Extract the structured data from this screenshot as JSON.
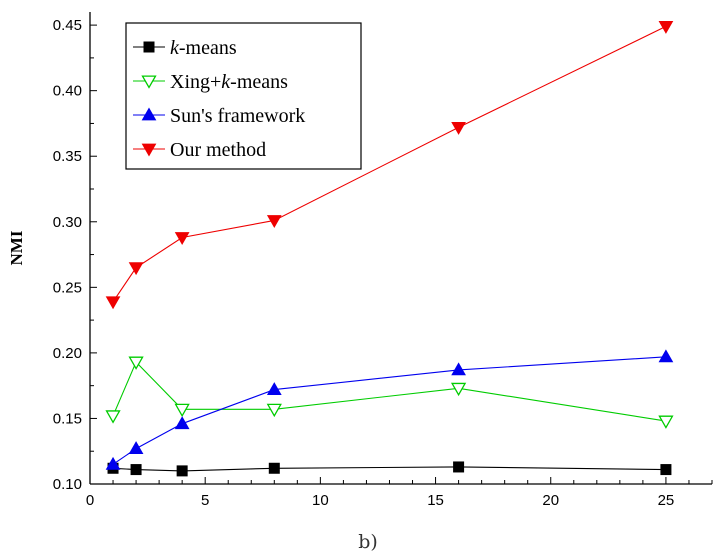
{
  "chart_data": {
    "type": "line",
    "title": "",
    "caption": "b)",
    "xlabel": "",
    "ylabel": "NMI",
    "xlim": [
      0,
      27
    ],
    "ylim": [
      0.1,
      0.46
    ],
    "xticks": [
      0,
      5,
      10,
      15,
      20,
      25
    ],
    "xtick_labels": [
      "0",
      "5",
      "10",
      "15",
      "20",
      "25"
    ],
    "yticks": [
      0.1,
      0.15,
      0.2,
      0.25,
      0.3,
      0.35,
      0.4,
      0.45
    ],
    "ytick_labels": [
      "0.10",
      "0.15",
      "0.20",
      "0.25",
      "0.30",
      "0.35",
      "0.40",
      "0.45"
    ],
    "x": [
      1,
      2,
      4,
      8,
      16,
      25
    ],
    "legend_position": "top-left",
    "grid": false,
    "series": [
      {
        "name_parts": [
          {
            "text": "k",
            "italic": true
          },
          {
            "text": "-means",
            "italic": false
          }
        ],
        "name": "k-means",
        "color": "#000000",
        "marker": "square",
        "filled": true,
        "values": [
          0.112,
          0.111,
          0.11,
          0.112,
          0.113,
          0.111
        ]
      },
      {
        "name_parts": [
          {
            "text": "Xing+",
            "italic": false
          },
          {
            "text": "k",
            "italic": true
          },
          {
            "text": "-means",
            "italic": false
          }
        ],
        "name": "Xing+k-means",
        "color": "#00cc00",
        "marker": "triangle-down",
        "filled": false,
        "values": [
          0.152,
          0.193,
          0.157,
          0.157,
          0.173,
          0.148
        ]
      },
      {
        "name_parts": [
          {
            "text": "Sun's framework",
            "italic": false
          }
        ],
        "name": "Sun's framework",
        "color": "#0000ee",
        "marker": "triangle-up",
        "filled": true,
        "values": [
          0.115,
          0.127,
          0.146,
          0.172,
          0.187,
          0.197
        ]
      },
      {
        "name_parts": [
          {
            "text": "Our method",
            "italic": false
          }
        ],
        "name": "Our method",
        "color": "#ee0000",
        "marker": "triangle-down",
        "filled": true,
        "values": [
          0.239,
          0.265,
          0.288,
          0.301,
          0.372,
          0.449
        ]
      }
    ]
  }
}
